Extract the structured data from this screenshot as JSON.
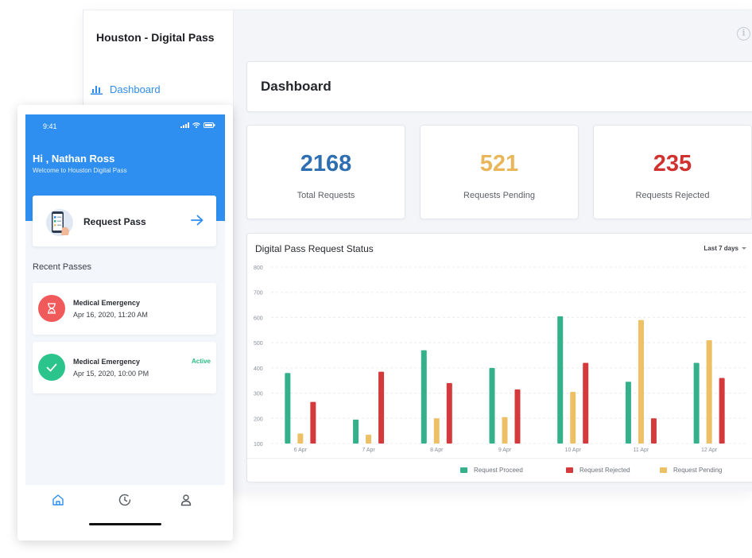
{
  "desktop": {
    "app_title": "Houston - Digital Pass",
    "nav": [
      {
        "label": "Dashboard",
        "icon": "bar-chart-icon",
        "active": true
      }
    ],
    "header_title": "Dashboard",
    "stats": [
      {
        "value": "2168",
        "label": "Total Requests",
        "color": "#2e6fb1"
      },
      {
        "value": "521",
        "label": "Requests Pending",
        "color": "#eab65a"
      },
      {
        "value": "235",
        "label": "Requests Rejected",
        "color": "#d0322f"
      }
    ]
  },
  "chart_data": {
    "type": "bar",
    "title": "Digital Pass Request Status",
    "range": "Last 7 days",
    "categories": [
      "6 Apr",
      "7 Apr",
      "8 Apr",
      "9 Apr",
      "10 Apr",
      "11 Apr",
      "12 Apr"
    ],
    "ylim": [
      100,
      800
    ],
    "yticks": [
      "100",
      "200",
      "300",
      "400",
      "500",
      "600",
      "700",
      "800"
    ],
    "grid": true,
    "legend_position": "bottom",
    "series": [
      {
        "name": "Request Proceed",
        "color": "#34b08a",
        "values": [
          380,
          195,
          470,
          400,
          605,
          345,
          420
        ]
      },
      {
        "name": "Request Pending",
        "color": "#edc065",
        "values": [
          140,
          135,
          200,
          205,
          305,
          590,
          510
        ]
      },
      {
        "name": "Request Rejected",
        "color": "#d4393b",
        "values": [
          265,
          385,
          340,
          315,
          420,
          200,
          360
        ]
      }
    ],
    "legend_order": [
      "Request Proceed",
      "Request Rejected",
      "Request Pending"
    ]
  },
  "phone": {
    "time": "9:41",
    "greeting": "Hi , Nathan Ross",
    "welcome": "Welcome to Houston Digital Pass",
    "request_label": "Request Pass",
    "recent_title": "Recent Passes",
    "passes": [
      {
        "title": "Medical Emergency",
        "date": "Apr 16, 2020, 11:20 AM",
        "status": "",
        "icon": "hourglass-icon",
        "color": "#f05a5b"
      },
      {
        "title": "Medical Emergency",
        "date": "Apr 15, 2020, 10:00 PM",
        "status": "Active",
        "icon": "check-icon",
        "color": "#2bc48c"
      }
    ],
    "tabs": [
      "home-icon",
      "history-icon",
      "profile-icon"
    ]
  }
}
